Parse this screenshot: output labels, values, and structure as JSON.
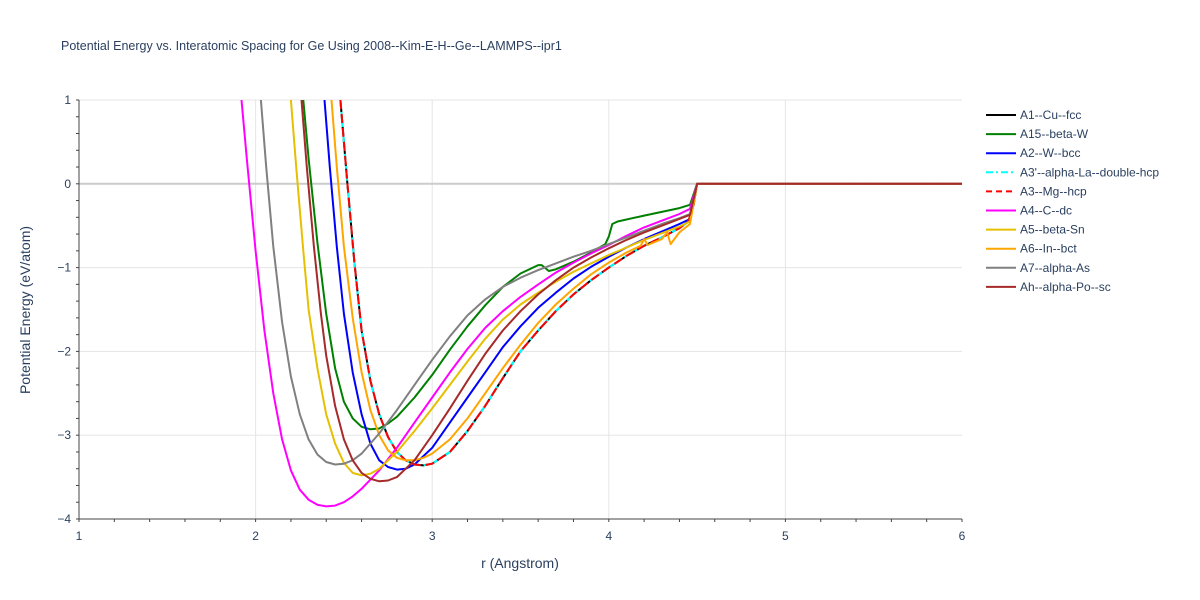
{
  "chart_data": {
    "type": "line",
    "title": "Potential Energy vs. Interatomic Spacing for Ge Using 2008--Kim-E-H--Ge--LAMMPS--ipr1",
    "xlabel": "r (Angstrom)",
    "ylabel": "Potential Energy (eV/atom)",
    "xlim": [
      1,
      6
    ],
    "ylim": [
      -4,
      1
    ],
    "xticks": [
      "1",
      "2",
      "3",
      "4",
      "5",
      "6"
    ],
    "yticks": [
      "1",
      "0",
      "−1",
      "−2",
      "−3",
      "−4"
    ],
    "grid": true,
    "legend_position": "right",
    "series": [
      {
        "name": "A1--Cu--fcc",
        "color": "#000000",
        "dash": "solid",
        "x": [
          2.48,
          2.52,
          2.56,
          2.6,
          2.65,
          2.7,
          2.75,
          2.8,
          2.85,
          2.9,
          2.95,
          3.0,
          3.1,
          3.2,
          3.3,
          3.4,
          3.5,
          3.6,
          3.7,
          3.8,
          3.9,
          4.0,
          4.1,
          4.2,
          4.3,
          4.4,
          4.45,
          4.48,
          4.5,
          5.0,
          6.0
        ],
        "y": [
          1.0,
          0.0,
          -0.95,
          -1.75,
          -2.35,
          -2.75,
          -3.02,
          -3.2,
          -3.3,
          -3.35,
          -3.36,
          -3.34,
          -3.2,
          -2.95,
          -2.65,
          -2.32,
          -2.0,
          -1.75,
          -1.52,
          -1.32,
          -1.15,
          -1.0,
          -0.86,
          -0.74,
          -0.64,
          -0.53,
          -0.45,
          -0.25,
          0.0,
          0.0,
          0.0
        ]
      },
      {
        "name": "A15--beta-W",
        "color": "#008000",
        "dash": "solid",
        "x": [
          2.27,
          2.3,
          2.35,
          2.4,
          2.45,
          2.5,
          2.55,
          2.6,
          2.65,
          2.7,
          2.75,
          2.8,
          2.9,
          3.0,
          3.1,
          3.2,
          3.3,
          3.4,
          3.5,
          3.6,
          3.62,
          3.66,
          3.7,
          3.8,
          3.9,
          3.98,
          4.0,
          4.02,
          4.05,
          4.2,
          4.4,
          4.46,
          4.5,
          5.0,
          6.0
        ],
        "y": [
          1.0,
          0.3,
          -0.7,
          -1.55,
          -2.2,
          -2.6,
          -2.8,
          -2.9,
          -2.93,
          -2.92,
          -2.86,
          -2.78,
          -2.55,
          -2.28,
          -1.98,
          -1.7,
          -1.45,
          -1.23,
          -1.07,
          -0.97,
          -0.97,
          -1.04,
          -1.02,
          -0.93,
          -0.82,
          -0.72,
          -0.63,
          -0.48,
          -0.45,
          -0.38,
          -0.29,
          -0.25,
          0.0,
          0.0,
          0.0
        ]
      },
      {
        "name": "A2--W--bcc",
        "color": "#0000ff",
        "dash": "solid",
        "x": [
          2.39,
          2.42,
          2.46,
          2.5,
          2.55,
          2.6,
          2.65,
          2.7,
          2.75,
          2.8,
          2.85,
          2.9,
          3.0,
          3.1,
          3.2,
          3.3,
          3.4,
          3.5,
          3.6,
          3.7,
          3.8,
          3.9,
          4.0,
          4.1,
          4.2,
          4.3,
          4.4,
          4.46,
          4.5,
          5.0,
          6.0
        ],
        "y": [
          1.0,
          0.2,
          -0.75,
          -1.55,
          -2.25,
          -2.75,
          -3.1,
          -3.3,
          -3.38,
          -3.41,
          -3.4,
          -3.35,
          -3.15,
          -2.85,
          -2.55,
          -2.25,
          -1.95,
          -1.7,
          -1.48,
          -1.3,
          -1.13,
          -0.99,
          -0.87,
          -0.76,
          -0.66,
          -0.57,
          -0.48,
          -0.42,
          0.0,
          0.0,
          0.0
        ]
      },
      {
        "name": "A3'--alpha-La--double-hcp",
        "color": "#00ffff",
        "dash": "dashdot",
        "x": [
          2.48,
          2.52,
          2.56,
          2.6,
          2.65,
          2.7,
          2.75,
          2.8,
          2.85,
          2.9,
          2.95,
          3.0,
          3.1,
          3.2,
          3.3,
          3.4,
          3.5,
          3.6,
          3.7,
          3.8,
          3.9,
          4.0,
          4.1,
          4.2,
          4.3,
          4.4,
          4.45,
          4.48,
          4.5,
          5.0,
          6.0
        ],
        "y": [
          1.0,
          0.0,
          -0.95,
          -1.75,
          -2.35,
          -2.75,
          -3.02,
          -3.2,
          -3.3,
          -3.35,
          -3.36,
          -3.34,
          -3.2,
          -2.95,
          -2.65,
          -2.32,
          -2.0,
          -1.75,
          -1.52,
          -1.32,
          -1.15,
          -1.0,
          -0.86,
          -0.74,
          -0.64,
          -0.53,
          -0.45,
          -0.25,
          0.0,
          0.0,
          0.0
        ]
      },
      {
        "name": "A3--Mg--hcp",
        "color": "#ff0000",
        "dash": "dash",
        "x": [
          2.48,
          2.52,
          2.56,
          2.6,
          2.65,
          2.7,
          2.75,
          2.8,
          2.85,
          2.9,
          2.95,
          3.0,
          3.1,
          3.2,
          3.3,
          3.4,
          3.5,
          3.6,
          3.7,
          3.8,
          3.9,
          4.0,
          4.1,
          4.2,
          4.3,
          4.4,
          4.45,
          4.48,
          4.5,
          5.0,
          6.0
        ],
        "y": [
          1.0,
          0.0,
          -0.95,
          -1.75,
          -2.35,
          -2.75,
          -3.02,
          -3.2,
          -3.3,
          -3.35,
          -3.36,
          -3.34,
          -3.2,
          -2.95,
          -2.65,
          -2.32,
          -2.0,
          -1.75,
          -1.52,
          -1.32,
          -1.15,
          -1.0,
          -0.86,
          -0.74,
          -0.64,
          -0.53,
          -0.45,
          -0.25,
          0.0,
          0.0,
          0.0
        ]
      },
      {
        "name": "A4--C--dc",
        "color": "#ff00ff",
        "dash": "solid",
        "x": [
          1.92,
          1.95,
          2.0,
          2.05,
          2.1,
          2.15,
          2.2,
          2.25,
          2.3,
          2.35,
          2.4,
          2.45,
          2.5,
          2.55,
          2.6,
          2.7,
          2.8,
          2.9,
          3.0,
          3.1,
          3.2,
          3.3,
          3.4,
          3.5,
          3.6,
          3.7,
          3.8,
          3.9,
          4.0,
          4.1,
          4.2,
          4.3,
          4.4,
          4.46,
          4.5,
          5.0,
          6.0
        ],
        "y": [
          1.0,
          0.3,
          -0.8,
          -1.75,
          -2.5,
          -3.05,
          -3.42,
          -3.65,
          -3.77,
          -3.83,
          -3.85,
          -3.84,
          -3.8,
          -3.73,
          -3.64,
          -3.42,
          -3.15,
          -2.85,
          -2.55,
          -2.25,
          -1.97,
          -1.72,
          -1.52,
          -1.35,
          -1.2,
          -1.06,
          -0.94,
          -0.83,
          -0.73,
          -0.62,
          -0.52,
          -0.44,
          -0.36,
          -0.3,
          0.0,
          0.0,
          0.0
        ]
      },
      {
        "name": "A5--beta-Sn",
        "color": "#e6c000",
        "dash": "solid",
        "x": [
          2.2,
          2.23,
          2.27,
          2.3,
          2.35,
          2.4,
          2.45,
          2.5,
          2.55,
          2.6,
          2.65,
          2.7,
          2.8,
          2.9,
          3.0,
          3.1,
          3.2,
          3.3,
          3.4,
          3.5,
          3.6,
          3.7,
          3.8,
          3.9,
          4.0,
          4.1,
          4.2,
          4.3,
          4.4,
          4.46,
          4.5,
          5.0,
          6.0
        ],
        "y": [
          1.0,
          0.2,
          -0.8,
          -1.5,
          -2.2,
          -2.75,
          -3.1,
          -3.33,
          -3.45,
          -3.48,
          -3.46,
          -3.4,
          -3.2,
          -2.95,
          -2.68,
          -2.4,
          -2.12,
          -1.85,
          -1.62,
          -1.44,
          -1.3,
          -1.17,
          -1.05,
          -0.95,
          -0.85,
          -0.76,
          -0.67,
          -0.59,
          -0.51,
          -0.45,
          0.0,
          0.0,
          0.0
        ]
      },
      {
        "name": "A6--In--bct",
        "color": "#ffa500",
        "dash": "solid",
        "x": [
          2.43,
          2.46,
          2.5,
          2.55,
          2.6,
          2.65,
          2.7,
          2.75,
          2.8,
          2.85,
          2.9,
          2.95,
          3.0,
          3.1,
          3.2,
          3.3,
          3.4,
          3.5,
          3.6,
          3.7,
          3.8,
          3.9,
          4.0,
          4.1,
          4.18,
          4.2,
          4.22,
          4.3,
          4.33,
          4.35,
          4.4,
          4.46,
          4.5,
          5.0,
          6.0
        ],
        "y": [
          1.0,
          0.2,
          -0.75,
          -1.6,
          -2.25,
          -2.7,
          -3.0,
          -3.18,
          -3.27,
          -3.3,
          -3.3,
          -3.27,
          -3.22,
          -3.05,
          -2.8,
          -2.5,
          -2.2,
          -1.92,
          -1.66,
          -1.44,
          -1.25,
          -1.08,
          -0.94,
          -0.82,
          -0.74,
          -0.66,
          -0.73,
          -0.66,
          -0.58,
          -0.72,
          -0.58,
          -0.48,
          0.0,
          0.0,
          0.0
        ]
      },
      {
        "name": "A7--alpha-As",
        "color": "#808080",
        "dash": "solid",
        "x": [
          2.03,
          2.06,
          2.1,
          2.15,
          2.2,
          2.25,
          2.3,
          2.35,
          2.4,
          2.45,
          2.5,
          2.55,
          2.6,
          2.7,
          2.8,
          2.9,
          3.0,
          3.1,
          3.2,
          3.3,
          3.4,
          3.5,
          3.6,
          3.7,
          3.8,
          3.9,
          4.0,
          4.1,
          4.2,
          4.3,
          4.4,
          4.46,
          4.5,
          5.0,
          6.0
        ],
        "y": [
          1.0,
          0.2,
          -0.75,
          -1.65,
          -2.3,
          -2.75,
          -3.05,
          -3.23,
          -3.32,
          -3.35,
          -3.34,
          -3.3,
          -3.22,
          -2.98,
          -2.7,
          -2.4,
          -2.1,
          -1.82,
          -1.57,
          -1.38,
          -1.23,
          -1.12,
          -1.03,
          -0.95,
          -0.87,
          -0.8,
          -0.72,
          -0.64,
          -0.56,
          -0.48,
          -0.41,
          -0.36,
          0.0,
          0.0,
          0.0
        ]
      },
      {
        "name": "Ah--alpha-Po--sc",
        "color": "#a52a2a",
        "dash": "solid",
        "x": [
          2.26,
          2.29,
          2.33,
          2.37,
          2.4,
          2.45,
          2.5,
          2.55,
          2.6,
          2.65,
          2.7,
          2.75,
          2.8,
          2.9,
          3.0,
          3.1,
          3.2,
          3.3,
          3.4,
          3.5,
          3.6,
          3.7,
          3.8,
          3.9,
          4.0,
          4.1,
          4.2,
          4.3,
          4.4,
          4.46,
          4.5,
          5.0,
          6.0
        ],
        "y": [
          1.0,
          0.2,
          -0.75,
          -1.55,
          -2.05,
          -2.65,
          -3.05,
          -3.3,
          -3.45,
          -3.52,
          -3.55,
          -3.54,
          -3.5,
          -3.3,
          -3.0,
          -2.68,
          -2.35,
          -2.03,
          -1.75,
          -1.52,
          -1.32,
          -1.15,
          -1.0,
          -0.88,
          -0.77,
          -0.67,
          -0.58,
          -0.5,
          -0.42,
          -0.37,
          0.0,
          0.0,
          0.0
        ]
      }
    ]
  }
}
